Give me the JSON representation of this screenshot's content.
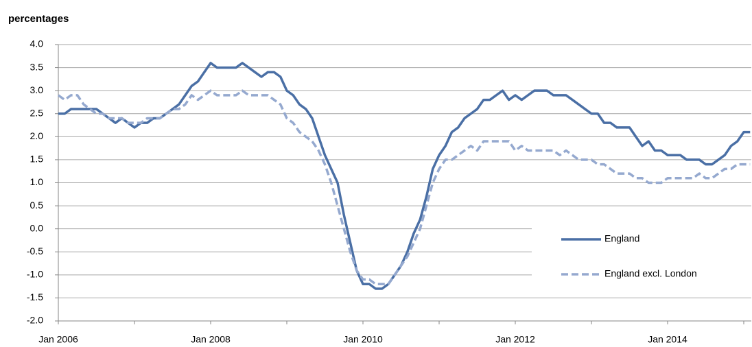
{
  "chart_data": {
    "type": "line",
    "title": "percentages",
    "categories": [
      "Jan 2006",
      null,
      null,
      null,
      null,
      null,
      null,
      null,
      null,
      null,
      null,
      null,
      null,
      null,
      null,
      null,
      null,
      null,
      null,
      null,
      null,
      null,
      null,
      null,
      "Jan 2008",
      null,
      null,
      null,
      null,
      null,
      null,
      null,
      null,
      null,
      null,
      null,
      null,
      null,
      null,
      null,
      null,
      null,
      null,
      null,
      null,
      null,
      null,
      null,
      "Jan 2010",
      null,
      null,
      null,
      null,
      null,
      null,
      null,
      null,
      null,
      null,
      null,
      null,
      null,
      null,
      null,
      null,
      null,
      null,
      null,
      null,
      null,
      null,
      null,
      "Jan 2012",
      null,
      null,
      null,
      null,
      null,
      null,
      null,
      null,
      null,
      null,
      null,
      null,
      null,
      null,
      null,
      null,
      null,
      null,
      null,
      null,
      null,
      null,
      null,
      "Jan 2014",
      null,
      null,
      null,
      null,
      null,
      null,
      null,
      null,
      null,
      null,
      null,
      null,
      null
    ],
    "series": [
      {
        "name": "England",
        "color": "#4a6fa5",
        "line_style": "solid",
        "values": [
          2.5,
          2.5,
          2.6,
          2.6,
          2.6,
          2.6,
          2.6,
          2.5,
          2.4,
          2.3,
          2.4,
          2.3,
          2.2,
          2.3,
          2.3,
          2.4,
          2.4,
          2.5,
          2.6,
          2.7,
          2.9,
          3.1,
          3.2,
          3.4,
          3.6,
          3.5,
          3.5,
          3.5,
          3.5,
          3.6,
          3.5,
          3.4,
          3.3,
          3.4,
          3.4,
          3.3,
          3.0,
          2.9,
          2.7,
          2.6,
          2.4,
          2.0,
          1.6,
          1.3,
          1.0,
          0.3,
          -0.3,
          -0.9,
          -1.2,
          -1.2,
          -1.3,
          -1.3,
          -1.2,
          -1.0,
          -0.8,
          -0.5,
          -0.1,
          0.2,
          0.7,
          1.3,
          1.6,
          1.8,
          2.1,
          2.2,
          2.4,
          2.5,
          2.6,
          2.8,
          2.8,
          2.9,
          3.0,
          2.8,
          2.9,
          2.8,
          2.9,
          3.0,
          3.0,
          3.0,
          2.9,
          2.9,
          2.9,
          2.8,
          2.7,
          2.6,
          2.5,
          2.5,
          2.3,
          2.3,
          2.2,
          2.2,
          2.2,
          2.0,
          1.8,
          1.9,
          1.7,
          1.7,
          1.6,
          1.6,
          1.6,
          1.5,
          1.5,
          1.5,
          1.4,
          1.4,
          1.5,
          1.6,
          1.8,
          1.9,
          2.1,
          2.1
        ]
      },
      {
        "name": "England excl. London",
        "color": "#95a9cf",
        "line_style": "dashed",
        "values": [
          2.9,
          2.8,
          2.9,
          2.9,
          2.7,
          2.6,
          2.5,
          2.5,
          2.4,
          2.4,
          2.4,
          2.3,
          2.3,
          2.3,
          2.4,
          2.4,
          2.4,
          2.5,
          2.6,
          2.6,
          2.7,
          2.9,
          2.8,
          2.9,
          3.0,
          2.9,
          2.9,
          2.9,
          2.9,
          3.0,
          2.9,
          2.9,
          2.9,
          2.9,
          2.8,
          2.7,
          2.4,
          2.3,
          2.1,
          2.0,
          1.9,
          1.7,
          1.4,
          1.0,
          0.5,
          0.0,
          -0.5,
          -0.9,
          -1.1,
          -1.1,
          -1.2,
          -1.2,
          -1.2,
          -1.0,
          -0.8,
          -0.6,
          -0.3,
          0.0,
          0.5,
          1.0,
          1.3,
          1.5,
          1.5,
          1.6,
          1.7,
          1.8,
          1.7,
          1.9,
          1.9,
          1.9,
          1.9,
          1.9,
          1.7,
          1.8,
          1.7,
          1.7,
          1.7,
          1.7,
          1.7,
          1.6,
          1.7,
          1.6,
          1.5,
          1.5,
          1.5,
          1.4,
          1.4,
          1.3,
          1.2,
          1.2,
          1.2,
          1.1,
          1.1,
          1.0,
          1.0,
          1.0,
          1.1,
          1.1,
          1.1,
          1.1,
          1.1,
          1.2,
          1.1,
          1.1,
          1.2,
          1.3,
          1.3,
          1.4,
          1.4,
          1.4
        ]
      }
    ],
    "ylim": [
      -2.0,
      4.0
    ],
    "yticks": [
      {
        "value": -2.0,
        "label": "-2.0"
      },
      {
        "value": -1.5,
        "label": "-1.5"
      },
      {
        "value": -1.0,
        "label": "-1.0"
      },
      {
        "value": -0.5,
        "label": "-0.5"
      },
      {
        "value": 0.0,
        "label": "0.0"
      },
      {
        "value": 0.5,
        "label": "0.5"
      },
      {
        "value": 1.0,
        "label": "1.0"
      },
      {
        "value": 1.5,
        "label": "1.5"
      },
      {
        "value": 2.0,
        "label": "2.0"
      },
      {
        "value": 2.5,
        "label": "2.5"
      },
      {
        "value": 3.0,
        "label": "3.0"
      },
      {
        "value": 3.5,
        "label": "3.5"
      },
      {
        "value": 4.0,
        "label": "4.0"
      }
    ],
    "grid": true,
    "legend": "right"
  }
}
